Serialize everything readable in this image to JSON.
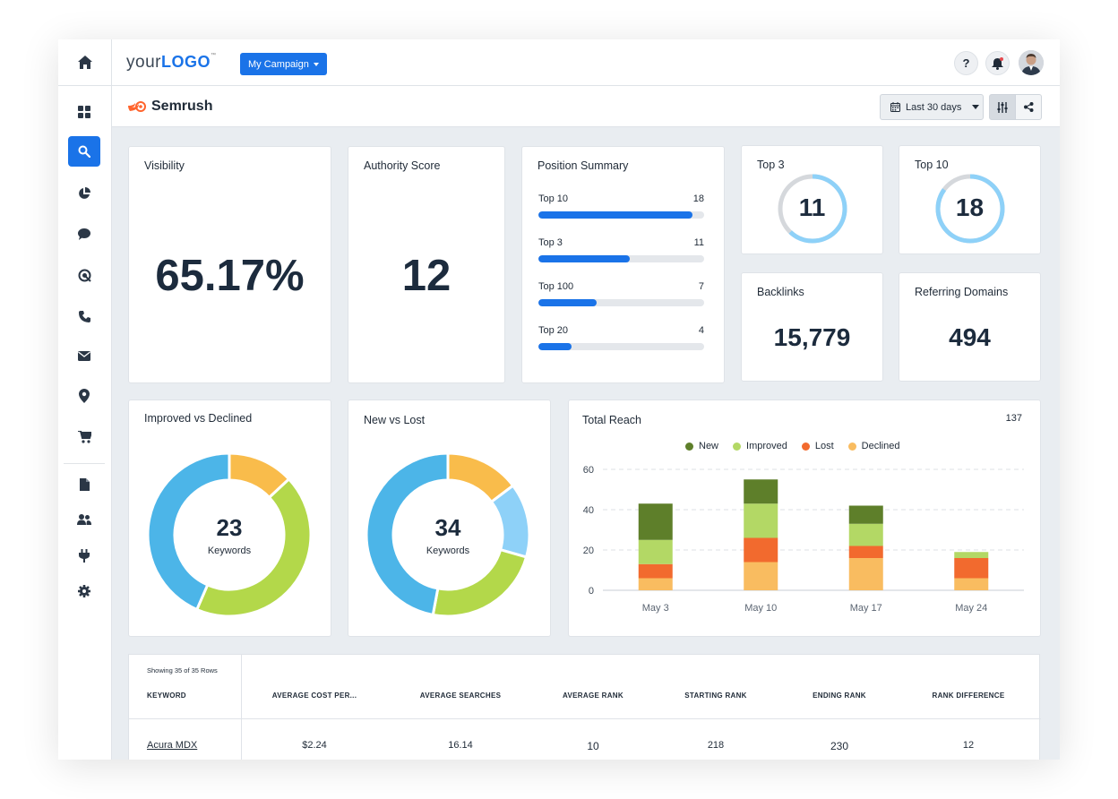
{
  "topbar": {
    "logo_prefix": "your",
    "logo_main": "LOGO",
    "logo_tm": "™",
    "campaign_label": "My Campaign",
    "help_label": "?"
  },
  "subbar": {
    "brand": "Semrush",
    "date_range": "Last 30 days"
  },
  "sidebar": {
    "items": [
      {
        "name": "home-icon"
      },
      {
        "name": "dashboard-grid-icon"
      },
      {
        "name": "search-icon",
        "active": true
      },
      {
        "name": "pie-chart-icon"
      },
      {
        "name": "chat-icon"
      },
      {
        "name": "ppc-target-icon"
      },
      {
        "name": "phone-icon"
      },
      {
        "name": "mail-icon"
      },
      {
        "name": "location-pin-icon"
      },
      {
        "name": "cart-icon"
      },
      {
        "name": "document-icon"
      },
      {
        "name": "users-icon"
      },
      {
        "name": "plug-icon"
      },
      {
        "name": "gear-icon"
      }
    ]
  },
  "visibility": {
    "title": "Visibility",
    "value": "65.17%"
  },
  "authority": {
    "title": "Authority Score",
    "value": "12"
  },
  "position_summary": {
    "title": "Position Summary",
    "rows": [
      {
        "label": "Top 10",
        "value": "18",
        "fill": 0.93
      },
      {
        "label": "Top 3",
        "value": "11",
        "fill": 0.55
      },
      {
        "label": "Top 100",
        "value": "7",
        "fill": 0.35
      },
      {
        "label": "Top 20",
        "value": "4",
        "fill": 0.2
      }
    ]
  },
  "top3": {
    "title": "Top 3",
    "value": "11",
    "fraction": 0.62
  },
  "top10": {
    "title": "Top 10",
    "value": "18",
    "fraction": 0.85
  },
  "backlinks": {
    "title": "Backlinks",
    "value": "15,779"
  },
  "referring": {
    "title": "Referring Domains",
    "value": "494"
  },
  "improved_declined": {
    "title": "Improved vs Declined",
    "total": "23",
    "unit": "Keywords",
    "segments": [
      {
        "value": 3,
        "color": "#f9bc4b"
      },
      {
        "value": 10,
        "color": "#b3d84a"
      },
      {
        "value": 10,
        "color": "#4cb5e8"
      }
    ]
  },
  "new_lost": {
    "title": "New vs Lost",
    "total": "34",
    "unit": "Keywords",
    "segments": [
      {
        "value": 5,
        "color": "#f9bc4b"
      },
      {
        "value": 5,
        "color": "#8ed1f8"
      },
      {
        "value": 8,
        "color": "#b3d84a"
      },
      {
        "value": 16,
        "color": "#4cb5e8"
      }
    ]
  },
  "total_reach": {
    "title": "Total Reach",
    "total": "137"
  },
  "chart_data": {
    "type": "bar",
    "stacked": true,
    "categories": [
      "May 3",
      "May 10",
      "May 17",
      "May 24"
    ],
    "series": [
      {
        "name": "New",
        "color": "#5e7f2a",
        "values": [
          18,
          12,
          9,
          0
        ]
      },
      {
        "name": "Improved",
        "color": "#b3d865",
        "values": [
          12,
          17,
          11,
          3
        ]
      },
      {
        "name": "Lost",
        "color": "#f26a2e",
        "values": [
          7,
          12,
          6,
          10
        ]
      },
      {
        "name": "Declined",
        "color": "#f9bc60",
        "values": [
          6,
          14,
          16,
          6
        ]
      }
    ],
    "yticks": [
      "0",
      "20",
      "40",
      "60"
    ],
    "ylim": [
      0,
      60
    ],
    "grid": true,
    "legend": "top"
  },
  "table": {
    "showing": "Showing 35 of 35 Rows",
    "headers": [
      "KEYWORD",
      "AVERAGE COST PER...",
      "AVERAGE SEARCHES",
      "AVERAGE RANK",
      "STARTING RANK",
      "ENDING RANK",
      "RANK DIFFERENCE"
    ],
    "rows": [
      [
        "Acura MDX",
        "$2.24",
        "16.14",
        "10",
        "218",
        "230",
        "12"
      ]
    ]
  }
}
